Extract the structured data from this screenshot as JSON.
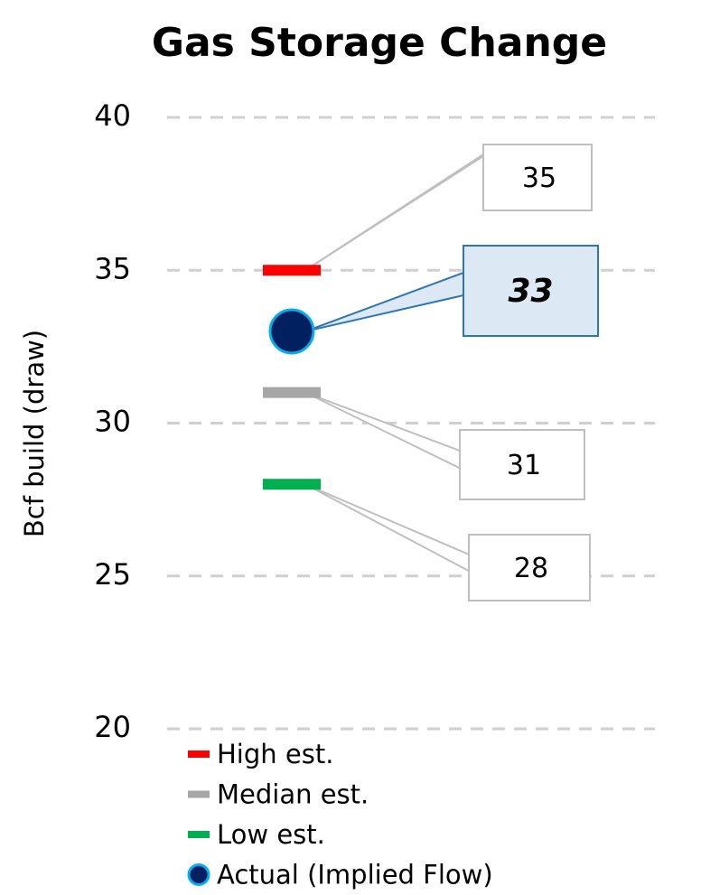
{
  "chart_data": {
    "type": "dot",
    "title": "Gas Storage Change",
    "y_label": "Bcf build (draw)",
    "ylim": [
      20,
      40
    ],
    "yticks": [
      20,
      25,
      30,
      35,
      40
    ],
    "grid": true,
    "series": [
      {
        "name": "High est.",
        "color": "#ff0000",
        "marker": "dash",
        "values": [
          35
        ]
      },
      {
        "name": "Median est.",
        "color": "#a6a6a6",
        "marker": "dash",
        "values": [
          31
        ]
      },
      {
        "name": "Low est.",
        "color": "#00b050",
        "marker": "dash",
        "values": [
          28
        ]
      },
      {
        "name": "Actual (Implied Flow)",
        "color": "#002060",
        "marker": "circle",
        "values": [
          33
        ]
      }
    ]
  }
}
